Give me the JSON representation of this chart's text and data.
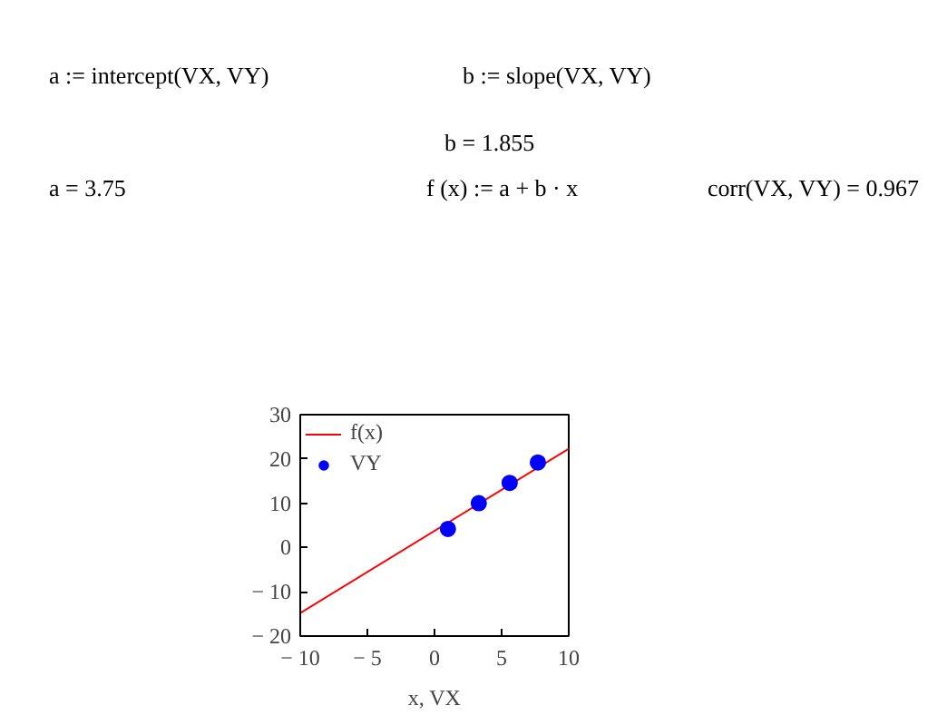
{
  "chart_data": {
    "type": "scatter",
    "xlabel": "x, VX",
    "annotations": [
      "a := intercept(VX, VY)",
      "b := slope(VX, VY)",
      "b = 1.855",
      "a = 3.75",
      "f (x) := a + b · x",
      "corr(VX, VY) = 0.967"
    ],
    "series": [
      {
        "name": "f(x)",
        "type": "line",
        "color": "#ff0000",
        "x": [
          -10,
          10
        ],
        "values": [
          -14.8,
          22.3
        ]
      },
      {
        "name": "VY",
        "color": "#0000ff",
        "marker": "circle",
        "x": [
          1,
          3.3,
          5.6,
          7.7
        ],
        "values": [
          4.2,
          10,
          14.6,
          19.2
        ]
      }
    ],
    "xlim": [
      -10,
      10
    ],
    "ylim": [
      -20,
      30
    ],
    "xticks": [
      {
        "value": -10,
        "label": "− 10"
      },
      {
        "value": -5,
        "label": "− 5"
      },
      0,
      5,
      10
    ],
    "yticks": [
      {
        "value": -20,
        "label": "− 20"
      },
      {
        "value": -10,
        "label": "− 10"
      },
      0,
      10,
      20,
      30
    ],
    "grid": false,
    "legend": "top left"
  }
}
